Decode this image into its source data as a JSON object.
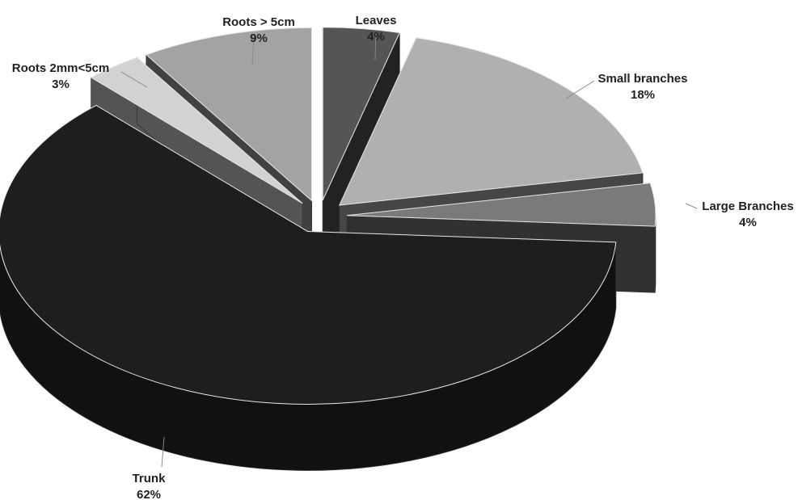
{
  "chart_data": {
    "type": "pie",
    "style": "3d-exploded",
    "slices": [
      {
        "label": "Leaves",
        "value": 4,
        "value_label": "4%",
        "color": "#555555"
      },
      {
        "label": "Small branches",
        "value": 18,
        "value_label": "18%",
        "color": "#b0b0b0"
      },
      {
        "label": "Large Branches",
        "value": 4,
        "value_label": "4%",
        "color": "#7a7a7a"
      },
      {
        "label": "Trunk",
        "value": 62,
        "value_label": "62%",
        "color": "#1e1e1e"
      },
      {
        "label": "Roots 2mm<5cm",
        "value": 3,
        "value_label": "3%",
        "color": "#d2d2d2"
      },
      {
        "label": "Roots > 5cm",
        "value": 9,
        "value_label": "9%",
        "color": "#a3a3a3"
      }
    ],
    "title": "",
    "legend": "none"
  }
}
